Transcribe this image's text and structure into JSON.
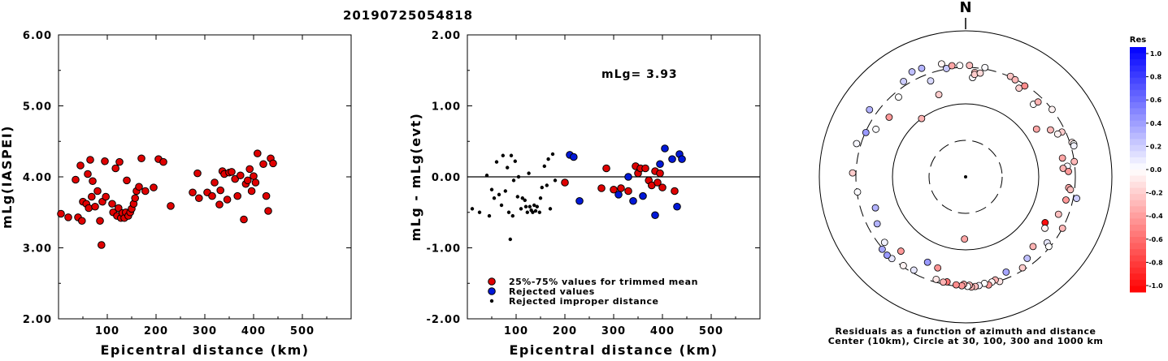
{
  "title": "20190725054818",
  "chart_data": [
    {
      "type": "scatter",
      "xlabel": "Epicentral distance (km)",
      "ylabel": "mLg(IASPEI)",
      "xlim": [
        0,
        600
      ],
      "ylim": [
        2,
        6
      ],
      "xticks": [
        "100",
        "200",
        "300",
        "400",
        "500"
      ],
      "yticks": [
        "2.00",
        "3.00",
        "4.00",
        "5.00",
        "6.00"
      ],
      "marker_color": "#e00000",
      "points": [
        [
          5,
          3.48
        ],
        [
          20,
          3.43
        ],
        [
          35,
          3.96
        ],
        [
          40,
          3.43
        ],
        [
          45,
          4.16
        ],
        [
          48,
          3.38
        ],
        [
          50,
          3.65
        ],
        [
          57,
          3.62
        ],
        [
          60,
          4.04
        ],
        [
          62,
          3.56
        ],
        [
          65,
          4.24
        ],
        [
          68,
          3.72
        ],
        [
          70,
          3.94
        ],
        [
          75,
          3.58
        ],
        [
          80,
          3.8
        ],
        [
          85,
          3.38
        ],
        [
          88,
          3.04
        ],
        [
          90,
          3.65
        ],
        [
          95,
          4.22
        ],
        [
          97,
          3.72
        ],
        [
          110,
          3.62
        ],
        [
          112,
          3.5
        ],
        [
          117,
          4.12
        ],
        [
          120,
          3.45
        ],
        [
          123,
          3.56
        ],
        [
          125,
          4.21
        ],
        [
          128,
          3.42
        ],
        [
          131,
          3.49
        ],
        [
          135,
          3.42
        ],
        [
          138,
          3.5
        ],
        [
          140,
          3.95
        ],
        [
          143,
          3.45
        ],
        [
          147,
          3.5
        ],
        [
          150,
          3.55
        ],
        [
          154,
          3.62
        ],
        [
          157,
          3.7
        ],
        [
          160,
          3.8
        ],
        [
          165,
          3.86
        ],
        [
          170,
          4.26
        ],
        [
          178,
          3.8
        ],
        [
          195,
          3.85
        ],
        [
          205,
          4.25
        ],
        [
          215,
          4.21
        ],
        [
          230,
          3.59
        ],
        [
          275,
          3.78
        ],
        [
          285,
          4.05
        ],
        [
          288,
          3.7
        ],
        [
          305,
          3.78
        ],
        [
          315,
          3.73
        ],
        [
          320,
          3.92
        ],
        [
          330,
          3.61
        ],
        [
          332,
          3.81
        ],
        [
          336,
          4.08
        ],
        [
          340,
          4.04
        ],
        [
          346,
          3.68
        ],
        [
          350,
          4.06
        ],
        [
          355,
          4.07
        ],
        [
          362,
          3.97
        ],
        [
          367,
          3.73
        ],
        [
          373,
          4.02
        ],
        [
          380,
          3.4
        ],
        [
          384,
          3.9
        ],
        [
          388,
          3.95
        ],
        [
          392,
          4.11
        ],
        [
          396,
          3.8
        ],
        [
          400,
          4.01
        ],
        [
          404,
          3.92
        ],
        [
          408,
          4.33
        ],
        [
          420,
          4.18
        ],
        [
          426,
          3.73
        ],
        [
          430,
          3.52
        ],
        [
          435,
          4.26
        ],
        [
          440,
          4.19
        ]
      ]
    },
    {
      "type": "scatter",
      "xlabel": "Epicentral distance (km)",
      "ylabel": "mLg - mLg(evt)",
      "annotation": "mLg= 3.93",
      "xlim": [
        0,
        600
      ],
      "ylim": [
        -2,
        2
      ],
      "xticks": [
        "100",
        "200",
        "300",
        "400",
        "500"
      ],
      "yticks": [
        "-2.00",
        "-1.00",
        "0.00",
        "1.00",
        "2.00"
      ],
      "reference_line": 0,
      "legend": [
        {
          "label": "25%-75% values for trimmed mean",
          "color": "#e00000",
          "marker": "circle"
        },
        {
          "label": "Rejected values",
          "color": "#0018d8",
          "marker": "circle"
        },
        {
          "label": "Rejected improper distance",
          "color": "#000000",
          "marker": "dot"
        }
      ],
      "series": [
        {
          "name": "25%-75% values for trimmed mean",
          "color": "#e00000",
          "points": [
            [
              200,
              -0.08
            ],
            [
              285,
              0.12
            ],
            [
              275,
              -0.16
            ],
            [
              300,
              -0.18
            ],
            [
              315,
              -0.16
            ],
            [
              330,
              -0.2
            ],
            [
              345,
              0.15
            ],
            [
              350,
              0.05
            ],
            [
              355,
              0.12
            ],
            [
              365,
              0.12
            ],
            [
              372,
              -0.05
            ],
            [
              378,
              -0.12
            ],
            [
              385,
              0.08
            ],
            [
              390,
              -0.08
            ],
            [
              395,
              0.05
            ],
            [
              400,
              -0.15
            ],
            [
              425,
              -0.2
            ]
          ]
        },
        {
          "name": "Rejected values",
          "color": "#0018d8",
          "points": [
            [
              210,
              0.31
            ],
            [
              218,
              0.28
            ],
            [
              230,
              -0.34
            ],
            [
              310,
              -0.25
            ],
            [
              330,
              0.0
            ],
            [
              340,
              -0.34
            ],
            [
              360,
              -0.27
            ],
            [
              385,
              -0.54
            ],
            [
              395,
              0.18
            ],
            [
              405,
              0.4
            ],
            [
              420,
              0.25
            ],
            [
              430,
              -0.42
            ],
            [
              435,
              0.32
            ],
            [
              440,
              0.25
            ]
          ]
        },
        {
          "name": "Rejected improper distance",
          "color": "#000000",
          "points": [
            [
              10,
              -0.45
            ],
            [
              25,
              -0.5
            ],
            [
              40,
              0.02
            ],
            [
              45,
              -0.55
            ],
            [
              50,
              -0.18
            ],
            [
              55,
              -0.3
            ],
            [
              60,
              0.21
            ],
            [
              65,
              -0.25
            ],
            [
              70,
              -0.4
            ],
            [
              73,
              0.3
            ],
            [
              78,
              -0.2
            ],
            [
              82,
              0.13
            ],
            [
              85,
              -0.5
            ],
            [
              88,
              -0.88
            ],
            [
              90,
              0.3
            ],
            [
              93,
              -0.55
            ],
            [
              95,
              -0.05
            ],
            [
              98,
              0.22
            ],
            [
              103,
              -0.28
            ],
            [
              105,
              0.0
            ],
            [
              110,
              -0.45
            ],
            [
              113,
              -0.3
            ],
            [
              118,
              -0.33
            ],
            [
              120,
              -0.42
            ],
            [
              123,
              -0.5
            ],
            [
              126,
              0.05
            ],
            [
              128,
              -0.42
            ],
            [
              131,
              -0.47
            ],
            [
              134,
              -0.5
            ],
            [
              137,
              -0.4
            ],
            [
              140,
              -0.48
            ],
            [
              143,
              -0.42
            ],
            [
              148,
              -0.5
            ],
            [
              150,
              -0.3
            ],
            [
              153,
              -0.15
            ],
            [
              158,
              0.15
            ],
            [
              163,
              -0.12
            ],
            [
              166,
              0.25
            ],
            [
              170,
              -0.45
            ],
            [
              175,
              0.32
            ],
            [
              180,
              -0.05
            ]
          ]
        }
      ]
    },
    {
      "type": "scatter",
      "subtype": "polar-residuals",
      "north_label": "N",
      "caption_line1": "Residuals as a function of azimuth and distance",
      "caption_line2": "Center (10km), Circle at 30, 100, 300 and 1000 km",
      "colorbar_title": "Res",
      "colorbar_ticks": [
        "1.0",
        "0.8",
        "0.6",
        "0.4",
        "0.2",
        "0.0",
        "-0.2",
        "-0.4",
        "-0.6",
        "-0.8",
        "-1.0"
      ],
      "colorbar_range": [
        -1,
        1
      ],
      "rings_km": [
        30,
        100,
        300,
        1000
      ],
      "points": [
        [
          -179,
          70,
          -0.35
        ],
        [
          -170,
          275,
          -0.55
        ],
        [
          -163,
          195,
          -0.42
        ],
        [
          -27,
          395,
          0.25
        ],
        [
          -22,
          385,
          0.3
        ],
        [
          -10,
          305,
          0.22
        ],
        [
          4,
          222,
          0.03
        ],
        [
          5,
          260,
          -0.25
        ],
        [
          10,
          315,
          0.02
        ],
        [
          24,
          305,
          -0.22
        ],
        [
          27,
          295,
          -0.28
        ],
        [
          31,
          250,
          -0.18
        ],
        [
          33,
          290,
          -0.45
        ],
        [
          43,
          220,
          0.01
        ],
        [
          44,
          255,
          -0.3
        ],
        [
          52,
          300,
          -0.05
        ],
        [
          56,
          145,
          -0.35
        ],
        [
          61,
          205,
          -0.28
        ],
        [
          65,
          270,
          -0.2
        ],
        [
          65,
          235,
          -0.05
        ],
        [
          72,
          322,
          -0.1
        ],
        [
          73,
          335,
          0.0
        ],
        [
          74,
          330,
          0.05
        ],
        [
          79,
          215,
          -0.35
        ],
        [
          82,
          300,
          -0.28
        ],
        [
          84,
          240,
          0.03
        ],
        [
          85,
          210,
          -0.3
        ],
        [
          87,
          245,
          -0.4
        ],
        [
          96,
          250,
          -0.35
        ],
        [
          97,
          265,
          -0.25
        ],
        [
          101,
          335,
          0.2
        ],
        [
          103,
          245,
          -0.4
        ],
        [
          112,
          225,
          -0.25
        ],
        [
          118,
          300,
          -0.28
        ],
        [
          120,
          175,
          -0.95
        ],
        [
          123,
          190,
          -0.05
        ],
        [
          129,
          260,
          0.1
        ],
        [
          130,
          290,
          0.0
        ],
        [
          136,
          205,
          -0.3
        ],
        [
          143,
          240,
          0.25
        ],
        [
          148,
          280,
          -0.2
        ],
        [
          157,
          250,
          0.35
        ],
        [
          162,
          305,
          -0.1
        ],
        [
          164,
          280,
          -0.3
        ],
        [
          166,
          290,
          -0.05
        ],
        [
          168,
          310,
          -0.4
        ],
        [
          170,
          288,
          0.0
        ],
        [
          173,
          300,
          0.05
        ],
        [
          175,
          305,
          -0.25
        ],
        [
          177,
          308,
          -0.28
        ],
        [
          178,
          290,
          -0.28
        ],
        [
          179,
          300,
          0.0
        ],
        [
          -179,
          282,
          -0.35
        ],
        [
          -178,
          295,
          -0.4
        ],
        [
          -175,
          290,
          -0.45
        ],
        [
          -168,
          283,
          -0.3
        ],
        [
          -164,
          275,
          -0.1
        ],
        [
          -156,
          185,
          0.4
        ],
        [
          -151,
          275,
          0.1
        ],
        [
          -145,
          290,
          -0.05
        ],
        [
          -139,
          215,
          -0.4
        ],
        [
          -138,
          305,
          0.1
        ],
        [
          -135,
          313,
          0.4
        ],
        [
          -131,
          308,
          0.35
        ],
        [
          -129,
          255,
          0.05
        ],
        [
          -118,
          225,
          0.3
        ],
        [
          -109,
          195,
          0.3
        ],
        [
          -98,
          295,
          0.02
        ],
        [
          -88,
          335,
          -0.2
        ],
        [
          -73,
          345,
          0.03
        ],
        [
          -66,
          295,
          0.4
        ],
        [
          -62,
          235,
          0.02
        ],
        [
          -52,
          205,
          -0.4
        ],
        [
          -37,
          100,
          -0.3
        ],
        [
          -40,
          255,
          0.0
        ],
        [
          -20,
          240,
          0.15
        ],
        [
          -18,
          150,
          -0.2
        ],
        [
          -12,
          365,
          -0.05
        ],
        [
          -7,
          325,
          -0.35
        ],
        [
          -3,
          320,
          0.0
        ],
        [
          2,
          320,
          -0.25
        ],
        [
          5,
          245,
          -0.2
        ],
        [
          8,
          260,
          -0.15
        ],
        [
          -33,
          345,
          0.2
        ],
        [
          -55,
          385,
          0.3
        ]
      ]
    }
  ]
}
